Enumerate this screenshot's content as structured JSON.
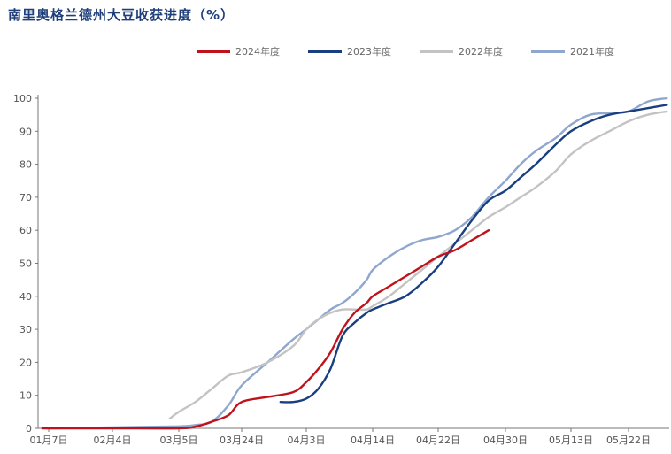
{
  "chart_data": {
    "type": "line",
    "title": "南里奥格兰德州大豆收获进度（%）",
    "xlabel": "",
    "ylabel": "",
    "x_tick_labels": [
      "01月7日",
      "02月4日",
      "03月5日",
      "03月24日",
      "04月3日",
      "04月14日",
      "04月22日",
      "04月30日",
      "05月13日",
      "05月22日"
    ],
    "y_ticks": [
      0,
      10,
      20,
      30,
      40,
      50,
      60,
      70,
      80,
      90,
      100
    ],
    "ylim": [
      0,
      100
    ],
    "legend_position": "top-center",
    "grid": false,
    "series": [
      {
        "name": "2024年度",
        "color": "#c0121a",
        "x": [
          "01月5日",
          "01月7日",
          "02月4日",
          "03月5日",
          "03月10日",
          "03月15日",
          "03月20日",
          "03月24日",
          "03月28日",
          "04月1日",
          "04月3日",
          "04月5日",
          "04月7日",
          "04月9日",
          "04月11日",
          "04月13日",
          "04月14日",
          "04月16日",
          "04月18日",
          "04月20日",
          "04月22日",
          "04月24日",
          "04月26日",
          "04月28日"
        ],
        "values": [
          0,
          0,
          0,
          0,
          0.5,
          2,
          4,
          8,
          9.5,
          11,
          14,
          18,
          23,
          30,
          35,
          38,
          40,
          43,
          46,
          49,
          52,
          54,
          57,
          60
        ]
      },
      {
        "name": "2023年度",
        "color": "#1a3f80",
        "x": [
          "03月30日",
          "04月1日",
          "04月3日",
          "04月5日",
          "04月7日",
          "04月9日",
          "04月11日",
          "04月13日",
          "04月14日",
          "04月16日",
          "04月18日",
          "04月20日",
          "04月22日",
          "04月24日",
          "04月26日",
          "04月28日",
          "04月30日",
          "05月3日",
          "05月6日",
          "05月10日",
          "05月13日",
          "05月16日",
          "05月19日",
          "05月22日",
          "05月25日",
          "05月28日"
        ],
        "values": [
          8,
          8,
          9,
          12,
          18,
          28,
          32,
          35,
          36,
          38,
          40,
          44,
          49,
          56,
          63,
          69,
          72,
          76,
          80,
          86,
          90,
          93,
          95,
          96,
          97,
          98
        ]
      },
      {
        "name": "2022年度",
        "color": "#c3c3c3",
        "x": [
          "03月1日",
          "03月5日",
          "03月10日",
          "03月15日",
          "03月20日",
          "03月24日",
          "03月28日",
          "04月1日",
          "04月3日",
          "04月5日",
          "04月7日",
          "04月9日",
          "04月11日",
          "04月13日",
          "04月14日",
          "04月16日",
          "04月18日",
          "04月20日",
          "04月22日",
          "04月24日",
          "04月26日",
          "04月28日",
          "04月30日",
          "05月3日",
          "05月6日",
          "05月10日",
          "05月13日",
          "05月16日",
          "05月19日",
          "05月22日",
          "05月25日",
          "05月28日"
        ],
        "values": [
          3,
          5,
          8,
          12,
          16,
          17,
          20,
          25,
          30,
          33,
          35,
          36,
          36,
          36,
          37,
          40,
          44,
          48,
          52,
          56,
          60,
          64,
          67,
          70,
          73,
          78,
          83,
          87,
          90,
          93,
          95,
          96
        ]
      },
      {
        "name": "2021年度",
        "color": "#8fa6cf",
        "x": [
          "01月7日",
          "02月4日",
          "03月5日",
          "03月10日",
          "03月15日",
          "03月20日",
          "03月24日",
          "03月28日",
          "04月1日",
          "04月3日",
          "04月5日",
          "04月7日",
          "04月9日",
          "04月11日",
          "04月13日",
          "04月14日",
          "04月16日",
          "04月18日",
          "04月20日",
          "04月22日",
          "04月24日",
          "04月26日",
          "04月28日",
          "04月30日",
          "05月3日",
          "05月6日",
          "05月10日",
          "05月13日",
          "05月16日",
          "05月19日",
          "05月22日",
          "05月25日",
          "05月28日"
        ],
        "values": [
          0,
          0.3,
          0.6,
          1,
          2,
          7,
          13,
          20,
          27,
          30,
          33,
          36,
          38,
          41,
          45,
          48,
          52,
          55,
          57,
          58,
          60,
          64,
          70,
          75,
          80,
          84,
          88,
          92,
          95,
          95.5,
          96,
          99,
          100
        ]
      }
    ]
  }
}
